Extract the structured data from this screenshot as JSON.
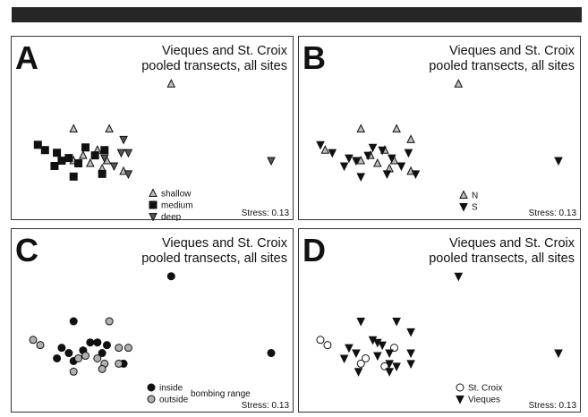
{
  "chart_data": [
    {
      "type": "scatter",
      "letter": "A",
      "title_lines": [
        "Vieques and St. Croix",
        "pooled transects, all sites"
      ],
      "stress": "Stress: 0.13",
      "legend_title": "",
      "legend": [
        {
          "name": "shallow",
          "marker": "triangle-up",
          "fill": "#bdbdbd"
        },
        {
          "name": "medium",
          "marker": "square",
          "fill": "#111111"
        },
        {
          "name": "deep",
          "marker": "triangle-down",
          "fill": "#555555"
        }
      ],
      "series": [
        {
          "name": "shallow",
          "points": [
            [
              0.58,
              0.86
            ],
            [
              0.17,
              0.52
            ],
            [
              0.32,
              0.52
            ],
            [
              0.27,
              0.36
            ],
            [
              0.21,
              0.32
            ],
            [
              0.17,
              0.28
            ],
            [
              0.24,
              0.26
            ],
            [
              0.31,
              0.28
            ],
            [
              0.29,
              0.22
            ],
            [
              0.38,
              0.2
            ]
          ]
        },
        {
          "name": "medium",
          "points": [
            [
              0.02,
              0.4
            ],
            [
              0.05,
              0.36
            ],
            [
              0.1,
              0.34
            ],
            [
              0.12,
              0.28
            ],
            [
              0.09,
              0.24
            ],
            [
              0.15,
              0.3
            ],
            [
              0.22,
              0.38
            ],
            [
              0.3,
              0.36
            ],
            [
              0.26,
              0.32
            ],
            [
              0.19,
              0.26
            ],
            [
              0.17,
              0.16
            ],
            [
              0.29,
              0.18
            ]
          ]
        },
        {
          "name": "deep",
          "points": [
            [
              0.38,
              0.44
            ],
            [
              0.37,
              0.34
            ],
            [
              0.3,
              0.3
            ],
            [
              0.4,
              0.34
            ],
            [
              0.34,
              0.24
            ],
            [
              0.4,
              0.18
            ],
            [
              1.0,
              0.28
            ]
          ]
        }
      ]
    },
    {
      "type": "scatter",
      "letter": "B",
      "title_lines": [
        "Vieques and St. Croix",
        "pooled transects, all sites"
      ],
      "stress": "Stress: 0.13",
      "legend_title": "",
      "legend": [
        {
          "name": "N",
          "marker": "triangle-up",
          "fill": "#bdbdbd"
        },
        {
          "name": "S",
          "marker": "triangle-down",
          "fill": "#111111"
        }
      ],
      "series": [
        {
          "name": "N",
          "points": [
            [
              0.58,
              0.86
            ],
            [
              0.17,
              0.52
            ],
            [
              0.32,
              0.52
            ],
            [
              0.38,
              0.44
            ],
            [
              0.02,
              0.36
            ],
            [
              0.27,
              0.36
            ],
            [
              0.21,
              0.32
            ],
            [
              0.17,
              0.28
            ],
            [
              0.24,
              0.26
            ],
            [
              0.29,
              0.22
            ],
            [
              0.31,
              0.28
            ],
            [
              0.38,
              0.2
            ]
          ]
        },
        {
          "name": "S",
          "points": [
            [
              0.0,
              0.4
            ],
            [
              0.05,
              0.34
            ],
            [
              0.12,
              0.3
            ],
            [
              0.1,
              0.24
            ],
            [
              0.15,
              0.28
            ],
            [
              0.22,
              0.38
            ],
            [
              0.26,
              0.36
            ],
            [
              0.2,
              0.32
            ],
            [
              0.3,
              0.3
            ],
            [
              0.37,
              0.34
            ],
            [
              0.17,
              0.16
            ],
            [
              0.28,
              0.18
            ],
            [
              0.34,
              0.24
            ],
            [
              0.4,
              0.18
            ],
            [
              1.0,
              0.28
            ]
          ]
        }
      ]
    },
    {
      "type": "scatter",
      "letter": "C",
      "title_lines": [
        "Vieques and St. Croix",
        "pooled transects, all sites"
      ],
      "stress": "Stress: 0.13",
      "legend_title": "bombing range",
      "legend": [
        {
          "name": "inside",
          "marker": "circle",
          "fill": "#111111"
        },
        {
          "name": "outside",
          "marker": "circle",
          "fill": "#b0b0b0"
        }
      ],
      "series": [
        {
          "name": "inside",
          "points": [
            [
              0.58,
              0.86
            ],
            [
              0.17,
              0.52
            ],
            [
              0.24,
              0.36
            ],
            [
              0.27,
              0.36
            ],
            [
              0.31,
              0.34
            ],
            [
              0.21,
              0.3
            ],
            [
              0.12,
              0.32
            ],
            [
              0.15,
              0.28
            ],
            [
              0.1,
              0.24
            ],
            [
              0.17,
              0.22
            ],
            [
              0.29,
              0.28
            ],
            [
              0.38,
              0.2
            ],
            [
              1.0,
              0.28
            ]
          ]
        },
        {
          "name": "outside",
          "points": [
            [
              0.32,
              0.52
            ],
            [
              0.0,
              0.38
            ],
            [
              0.03,
              0.34
            ],
            [
              0.36,
              0.32
            ],
            [
              0.4,
              0.32
            ],
            [
              0.22,
              0.26
            ],
            [
              0.19,
              0.24
            ],
            [
              0.27,
              0.24
            ],
            [
              0.3,
              0.2
            ],
            [
              0.36,
              0.2
            ],
            [
              0.17,
              0.14
            ],
            [
              0.29,
              0.16
            ]
          ]
        }
      ]
    },
    {
      "type": "scatter",
      "letter": "D",
      "title_lines": [
        "Vieques and St. Croix",
        "pooled transects, all sites"
      ],
      "stress": "Stress: 0.13",
      "legend_title": "",
      "legend": [
        {
          "name": "St. Croix",
          "marker": "circle",
          "fill": "#ffffff"
        },
        {
          "name": "Vieques",
          "marker": "triangle-down",
          "fill": "#111111"
        }
      ],
      "series": [
        {
          "name": "St. Croix",
          "points": [
            [
              0.0,
              0.38
            ],
            [
              0.03,
              0.34
            ],
            [
              0.31,
              0.32
            ],
            [
              0.19,
              0.24
            ],
            [
              0.17,
              0.2
            ],
            [
              0.27,
              0.18
            ]
          ]
        },
        {
          "name": "Vieques",
          "points": [
            [
              0.58,
              0.86
            ],
            [
              0.17,
              0.52
            ],
            [
              0.32,
              0.52
            ],
            [
              0.38,
              0.44
            ],
            [
              0.24,
              0.36
            ],
            [
              0.22,
              0.38
            ],
            [
              0.26,
              0.34
            ],
            [
              0.12,
              0.32
            ],
            [
              0.15,
              0.28
            ],
            [
              0.1,
              0.24
            ],
            [
              0.24,
              0.26
            ],
            [
              0.29,
              0.28
            ],
            [
              0.38,
              0.28
            ],
            [
              0.38,
              0.2
            ],
            [
              0.29,
              0.2
            ],
            [
              0.32,
              0.18
            ],
            [
              0.16,
              0.14
            ],
            [
              0.29,
              0.14
            ],
            [
              1.0,
              0.28
            ]
          ]
        }
      ]
    }
  ]
}
